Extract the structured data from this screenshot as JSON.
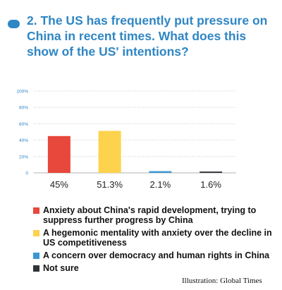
{
  "question": {
    "title": "2. The US has frequently put pressure on China in recent times. What does this show of the US' intentions?"
  },
  "chart_data": {
    "type": "bar",
    "categories": [
      "Anxiety about China's rapid development, trying to suppress further progress by China",
      "A hegemonic mentality with anxiety over the decline in US competitiveness",
      "A concern over democracy and human rights in China",
      "Not sure"
    ],
    "values": [
      45,
      51.3,
      2.1,
      1.6
    ],
    "value_labels": [
      "45%",
      "51.3%",
      "2.1%",
      "1.6%"
    ],
    "colors": [
      "#e8473b",
      "#fdd24c",
      "#3b97d3",
      "#2f3236"
    ],
    "yticks": [
      "0",
      "20%",
      "40%",
      "60%",
      "80%",
      "100%"
    ],
    "ylim": [
      0,
      100
    ]
  },
  "legend": [
    {
      "label": "Anxiety about China's rapid development, trying to suppress further progress by China",
      "color": "#e8473b"
    },
    {
      "label": "A hegemonic mentality with anxiety over the decline in US competitiveness",
      "color": "#fdd24c"
    },
    {
      "label": "A concern over democracy and human rights in China",
      "color": "#3b97d3"
    },
    {
      "label": "Not sure",
      "color": "#2f3236"
    }
  ],
  "credit": "Illustration: Global Times"
}
